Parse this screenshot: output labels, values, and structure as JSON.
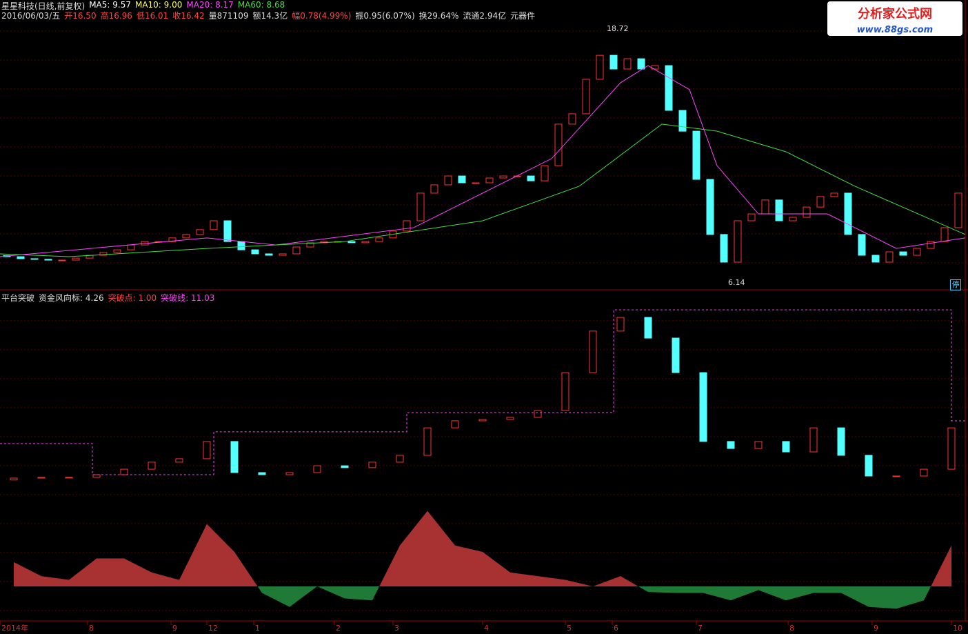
{
  "header": {
    "stock": "星星科技(日线,前复权)",
    "ma_labels": [
      {
        "text": "MA5: 9.57",
        "color": "#ffffff"
      },
      {
        "text": "MA10: 9.00",
        "color": "#ffff66"
      },
      {
        "text": "MA20: 8.17",
        "color": "#ff44ff"
      },
      {
        "text": "MA60: 8.68",
        "color": "#44dd44"
      }
    ],
    "quote": [
      {
        "text": "2016/06/03/五",
        "color": "#dddddd"
      },
      {
        "text": "开16.50",
        "color": "#ff4444"
      },
      {
        "text": "高16.96",
        "color": "#ff4444"
      },
      {
        "text": "低16.01",
        "color": "#ff4444"
      },
      {
        "text": "收16.42",
        "color": "#ff4444"
      },
      {
        "text": "量871109",
        "color": "#dddddd"
      },
      {
        "text": "额14.3亿",
        "color": "#dddddd"
      },
      {
        "text": "幅0.78(4.99%)",
        "color": "#ff4444"
      },
      {
        "text": "振0.95(6.07%)",
        "color": "#dddddd"
      },
      {
        "text": "换29.64%",
        "color": "#dddddd"
      },
      {
        "text": "流通2.94亿",
        "color": "#dddddd"
      },
      {
        "text": "元器件",
        "color": "#dddddd"
      }
    ]
  },
  "logo": {
    "name": "分析家公式网",
    "url": "www.88gs.com"
  },
  "indicator_header": [
    {
      "text": "平台突破",
      "color": "#dddddd"
    },
    {
      "text": "资金风向标: 4.26",
      "color": "#dddddd"
    },
    {
      "text": "突破点: 1.00",
      "color": "#ff4444"
    },
    {
      "text": "突破线: 11.03",
      "color": "#ff44ff"
    }
  ],
  "stop_badge": "停",
  "chart_data": [
    {
      "type": "candlestick",
      "ylim": [
        5.56,
        19.92
      ],
      "up_color": "#ff3333",
      "down_color": "#54ffff",
      "x": [
        0.5,
        1.5,
        2.5,
        3.5,
        4.5,
        5.5,
        6.5,
        7.5,
        8.5,
        9.5,
        10.5,
        11.5,
        12.5,
        13.5,
        14.5,
        15.5,
        16.5,
        17.5,
        18.5,
        19.5,
        20.5,
        21.5,
        22.5,
        23.5,
        24.5,
        25.5,
        26.5,
        27.5,
        28.5,
        29.5,
        30.5,
        31.5,
        32.5,
        33.5,
        34.5,
        35.5,
        36.5,
        37.5,
        38.5,
        39.5,
        40.5,
        41.5,
        42.5,
        43.5,
        44.5,
        45.5,
        46.5,
        47.5,
        48.5,
        49.5,
        50.5,
        51.5,
        52.5,
        53.5,
        54.5,
        55.5,
        56.5,
        57.5,
        58.5,
        59.5,
        60.5,
        61.5,
        62.5,
        63.5,
        64.5,
        65.5,
        66.5,
        67.5,
        68.5,
        69.5
      ],
      "open": [
        7.25,
        7.2,
        7.1,
        7.07,
        7.03,
        7.03,
        7.13,
        7.27,
        7.41,
        7.54,
        7.78,
        7.95,
        7.95,
        8.13,
        8.3,
        8.54,
        8.98,
        7.95,
        7.54,
        7.34,
        7.27,
        7.34,
        7.68,
        7.89,
        7.95,
        7.95,
        7.89,
        7.95,
        8.13,
        8.47,
        8.98,
        10.35,
        10.76,
        11.2,
        10.86,
        10.86,
        11.1,
        11.2,
        11.2,
        10.96,
        11.71,
        13.77,
        14.28,
        15.99,
        17.18,
        16.5,
        17.01,
        16.5,
        16.67,
        14.45,
        13.42,
        11.03,
        8.3,
        6.93,
        8.98,
        9.32,
        10.01,
        8.98,
        9.15,
        9.66,
        10.18,
        10.35,
        8.3,
        7.27,
        6.93,
        7.44,
        7.27,
        7.61,
        7.95,
        8.64
      ],
      "close": [
        7.2,
        7.1,
        7.07,
        7.03,
        7.03,
        7.13,
        7.27,
        7.41,
        7.54,
        7.78,
        7.95,
        7.95,
        8.13,
        8.3,
        8.54,
        8.98,
        7.95,
        7.54,
        7.34,
        7.27,
        7.34,
        7.68,
        7.89,
        7.95,
        7.95,
        7.89,
        7.95,
        8.13,
        8.47,
        8.98,
        10.35,
        10.76,
        11.2,
        10.86,
        10.86,
        11.1,
        11.2,
        11.2,
        10.96,
        11.71,
        13.77,
        14.28,
        15.99,
        17.18,
        16.5,
        17.01,
        16.5,
        16.67,
        14.45,
        13.42,
        11.03,
        8.3,
        6.93,
        8.98,
        9.32,
        10.01,
        8.98,
        9.15,
        9.66,
        10.18,
        10.35,
        8.3,
        7.27,
        6.93,
        7.44,
        7.27,
        7.61,
        7.95,
        8.64,
        10.35
      ],
      "lines": [
        {
          "name": "MA20",
          "color": "#ff44ff",
          "x": [
            0,
            15,
            20,
            30,
            40,
            45,
            47,
            50,
            52,
            55,
            60,
            65,
            70
          ],
          "values": [
            7.2,
            8.13,
            7.78,
            8.64,
            12.06,
            15.82,
            16.67,
            15.48,
            11.71,
            9.32,
            9.32,
            7.61,
            8.13
          ]
        },
        {
          "name": "MA60",
          "color": "#44dd44",
          "x": [
            0,
            5,
            15,
            25,
            35,
            42,
            48,
            52,
            57,
            62,
            70
          ],
          "values": [
            7.34,
            7.2,
            7.61,
            7.95,
            8.98,
            10.69,
            13.77,
            13.42,
            12.4,
            10.69,
            8.3
          ]
        }
      ],
      "annotations": [
        {
          "x": 43.5,
          "value": 18.72
        },
        {
          "x": 52.3,
          "value": 6.14
        }
      ]
    },
    {
      "type": "candlestick",
      "ylim": [
        0,
        100
      ],
      "up_color": "#ff3333",
      "down_color": "#54ffff",
      "x": [
        1,
        3,
        5,
        7,
        9,
        11,
        13,
        15,
        17,
        19,
        21,
        23,
        25,
        27,
        29,
        31,
        33,
        35,
        37,
        39,
        41,
        43,
        45,
        47,
        49,
        51,
        53,
        55,
        57,
        59,
        61,
        63,
        65,
        67,
        69
      ],
      "open": [
        7.0,
        8.0,
        8.4,
        8.4,
        9.8,
        12.7,
        16.4,
        18.2,
        27.3,
        10.9,
        9.8,
        10.9,
        14.5,
        13.5,
        16.4,
        20.0,
        34.5,
        38.2,
        38.9,
        40.0,
        43.6,
        63.6,
        85.5,
        92.7,
        81.8,
        63.6,
        27.3,
        23.6,
        27.3,
        21.8,
        34.5,
        20.0,
        9.1,
        9.1,
        12.7
      ],
      "close": [
        8.0,
        8.4,
        8.4,
        9.8,
        12.7,
        16.4,
        18.2,
        27.3,
        10.9,
        9.8,
        10.9,
        14.5,
        13.5,
        16.4,
        20.0,
        34.5,
        38.2,
        38.9,
        40.0,
        43.6,
        63.6,
        85.5,
        92.7,
        81.8,
        63.6,
        27.3,
        23.6,
        27.3,
        21.8,
        34.5,
        20.0,
        9.1,
        9.1,
        12.7,
        34.5
      ],
      "lines": [
        {
          "name": "突破线",
          "color": "#ff44ff",
          "x": [
            0,
            6.7,
            6.7,
            15.5,
            15.5,
            29.5,
            29.5,
            44.5,
            44.5,
            69,
            69,
            70
          ],
          "values": [
            26.2,
            26.2,
            9.8,
            9.8,
            32.4,
            32.4,
            42.5,
            42.5,
            96.7,
            96.7,
            38.2,
            38.2
          ]
        }
      ]
    },
    {
      "type": "area",
      "up_color": "#a83232",
      "down_color": "#1e7a36",
      "x": [
        1,
        3,
        5,
        7,
        9,
        11,
        13,
        15,
        17,
        19,
        21,
        23,
        25,
        27,
        29,
        31,
        33,
        35,
        37,
        39,
        41,
        43,
        45,
        47,
        49,
        51,
        53,
        55,
        57,
        59,
        61,
        63,
        65,
        67,
        69
      ],
      "values": [
        26,
        11,
        7,
        30,
        30,
        15,
        7,
        67,
        37,
        -7,
        -22,
        0,
        -13,
        -15,
        44,
        81,
        44,
        37,
        15,
        11,
        7,
        0,
        11,
        -6,
        -7,
        -7,
        -15,
        -4,
        -15,
        -7,
        -7,
        -22,
        -24,
        -15,
        44
      ]
    }
  ],
  "x_axis": {
    "labels": [
      "2014年",
      "8",
      "9",
      "12",
      "1",
      "2",
      "3",
      "4",
      "5",
      "6",
      "7",
      "8",
      "9",
      "10"
    ],
    "x": [
      0,
      6.35,
      12.4,
      15,
      18.4,
      24.25,
      28.5,
      35,
      41,
      44.4,
      50.5,
      57.15,
      63.25,
      69
    ]
  }
}
